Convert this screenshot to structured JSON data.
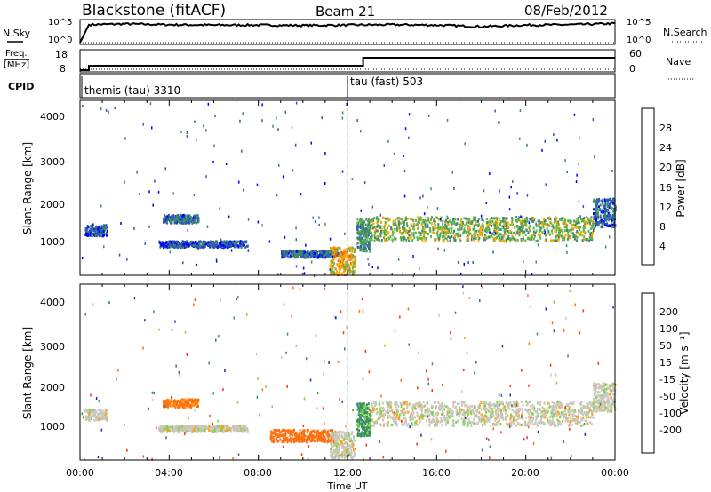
{
  "header": {
    "station": "Blackstone (fitACF)",
    "beam": "Beam 21",
    "date": "08/Feb/2012"
  },
  "noise_panel": {
    "left_label": "N.Sky",
    "right_label": "N.Search",
    "left_ticks": [
      "10^5",
      "10^0"
    ],
    "right_ticks": [
      "10^5",
      "10^0"
    ]
  },
  "freq_panel": {
    "left_label_1": "Freq.",
    "left_label_2": "[MHz]",
    "right_label": "Nave",
    "left_ticks": [
      "18",
      "8"
    ],
    "right_ticks": [
      "60",
      "0"
    ]
  },
  "cpid_panel": {
    "label": "CPID",
    "modes": [
      {
        "text": "themis (tau) 3310",
        "start_hour": 0
      },
      {
        "text": "tau (fast) 503",
        "start_hour": 12.5
      }
    ]
  },
  "power_panel": {
    "ylabel": "Slant Range [km]",
    "yticks": [
      "4000",
      "3000",
      "2000",
      "1000"
    ],
    "colorbar_label": "Power [dB]",
    "colorbar_ticks": [
      "28",
      "24",
      "20",
      "16",
      "12",
      "8",
      "4"
    ]
  },
  "velocity_panel": {
    "ylabel": "Slant Range [km]",
    "yticks": [
      "4000",
      "3000",
      "2000",
      "1000"
    ],
    "colorbar_label": "Velocity [m s⁻¹]",
    "colorbar_ticks": [
      "200",
      "100",
      "50",
      "15",
      "-15",
      "-50",
      "-100",
      "-200"
    ]
  },
  "x_axis": {
    "ticks": [
      "00:00",
      "04:00",
      "08:00",
      "12:00",
      "16:00",
      "20:00",
      "00:00"
    ],
    "label": "Time UT"
  },
  "colors": {
    "power_scale": [
      "#0000ff",
      "#2e5fa6",
      "#3d8a6c",
      "#60b34a",
      "#ffa500",
      "#ff6600",
      "#ff0000"
    ],
    "velocity_scale": [
      "#1e2da8",
      "#2f6e8a",
      "#3a9060",
      "#7fd44a",
      "#c8c8c0",
      "#ffa020",
      "#ff7010",
      "#ff3010",
      "#ff0000"
    ]
  },
  "chart_data": [
    {
      "type": "line",
      "name": "noise",
      "x_range_hours": [
        0,
        24
      ],
      "series": [
        {
          "name": "N.Sky",
          "x_hours": [
            0,
            0.4,
            2,
            4,
            6,
            8,
            10,
            12,
            14,
            16,
            18,
            20,
            22,
            24
          ],
          "log10_values": [
            0,
            4.6,
            4.8,
            4.6,
            4.5,
            4.5,
            4.4,
            4.5,
            4.6,
            4.5,
            4.1,
            4.5,
            4.6,
            4.9
          ]
        },
        {
          "name": "N.Search",
          "x_hours": [
            0,
            24
          ],
          "log10_values": [
            0,
            0
          ]
        }
      ]
    },
    {
      "type": "line",
      "name": "frequency_nave",
      "x_range_hours": [
        0,
        24
      ],
      "series": [
        {
          "name": "Freq.",
          "x_hours": [
            0,
            0.4,
            0.4,
            12.7,
            12.7,
            24
          ],
          "values_mhz": [
            8,
            8,
            10.5,
            10.5,
            15,
            15
          ]
        },
        {
          "name": "Nave",
          "x_hours": [
            0,
            24
          ],
          "values": [
            3,
            3
          ]
        }
      ]
    },
    {
      "type": "heatmap",
      "name": "power",
      "x_range_hours": [
        0,
        24
      ],
      "y_range_km": [
        180,
        4500
      ],
      "z_range_db": [
        0,
        32
      ],
      "features": [
        {
          "x_hours": [
            0.2,
            1.2
          ],
          "range_km": [
            1180,
            1450
          ],
          "db": 6
        },
        {
          "x_hours": [
            3.7,
            5.3
          ],
          "range_km": [
            1500,
            1700
          ],
          "db": 8
        },
        {
          "x_hours": [
            3.5,
            7.5
          ],
          "range_km": [
            900,
            1050
          ],
          "db": 6
        },
        {
          "x_hours": [
            9.0,
            11.5
          ],
          "range_km": [
            650,
            820
          ],
          "db": 8
        },
        {
          "x_hours": [
            11.2,
            12.3
          ],
          "range_km": [
            220,
            900
          ],
          "db": 20
        },
        {
          "x_hours": [
            12.4,
            13.0
          ],
          "range_km": [
            800,
            1600
          ],
          "db": 12
        },
        {
          "x_hours": [
            13.0,
            23.0
          ],
          "range_km": [
            1050,
            1650
          ],
          "db": 16
        },
        {
          "x_hours": [
            23.0,
            24.0
          ],
          "range_km": [
            1400,
            2100
          ],
          "db": 8
        }
      ]
    },
    {
      "type": "heatmap",
      "name": "velocity",
      "x_range_hours": [
        0,
        24
      ],
      "y_range_km": [
        180,
        4500
      ],
      "z_range_ms": [
        -250,
        250
      ],
      "features": [
        {
          "x_hours": [
            0.2,
            1.2
          ],
          "range_km": [
            1180,
            1450
          ],
          "ms": 0
        },
        {
          "x_hours": [
            3.7,
            5.3
          ],
          "range_km": [
            1500,
            1700
          ],
          "ms": -60
        },
        {
          "x_hours": [
            3.5,
            7.5
          ],
          "range_km": [
            900,
            1050
          ],
          "ms": 0
        },
        {
          "x_hours": [
            8.5,
            11.5
          ],
          "range_km": [
            650,
            950
          ],
          "ms": -80
        },
        {
          "x_hours": [
            11.2,
            12.3
          ],
          "range_km": [
            220,
            900
          ],
          "ms": 0
        },
        {
          "x_hours": [
            12.4,
            13.0
          ],
          "range_km": [
            800,
            1600
          ],
          "ms": 40
        },
        {
          "x_hours": [
            13.0,
            23.0
          ],
          "range_km": [
            1050,
            1650
          ],
          "ms": 0
        },
        {
          "x_hours": [
            23.0,
            24.0
          ],
          "range_km": [
            1400,
            2100
          ],
          "ms": 0
        }
      ]
    }
  ]
}
